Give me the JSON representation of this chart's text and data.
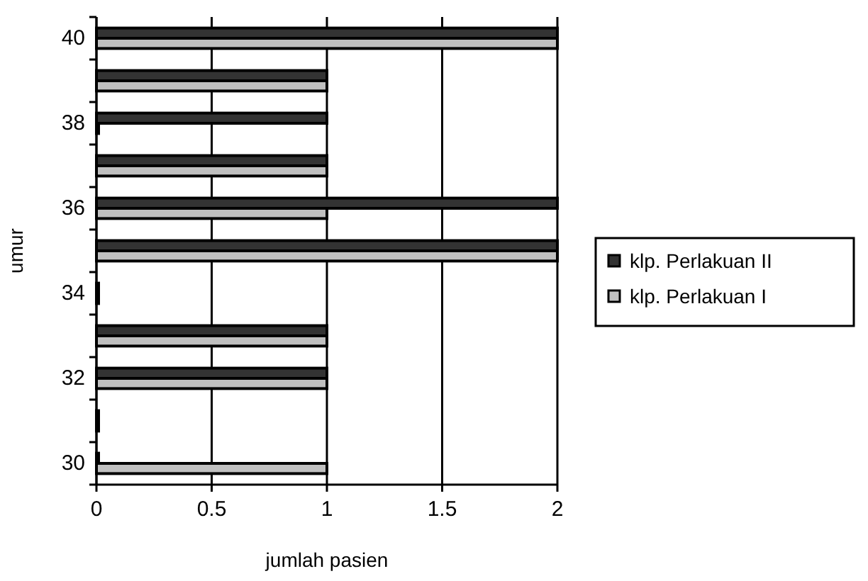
{
  "chart_data": {
    "type": "bar",
    "orientation": "horizontal",
    "xlabel": "jumlah pasien",
    "ylabel": "umur",
    "categories": [
      "40",
      null,
      "38",
      null,
      "36",
      null,
      "34",
      null,
      "32",
      null,
      "30"
    ],
    "series": [
      {
        "name": "klp. Perlakuan II",
        "color": "#333333",
        "values": [
          2,
          1,
          1,
          1,
          2,
          2,
          0,
          1,
          1,
          0,
          0
        ]
      },
      {
        "name": "klp. Perlakuan I",
        "color": "#c0c0c0",
        "values": [
          2,
          1,
          0,
          1,
          1,
          2,
          0,
          1,
          1,
          0,
          1
        ]
      }
    ],
    "xlim": [
      0,
      2
    ],
    "xticks": [
      0,
      0.5,
      1,
      1.5,
      2
    ],
    "grid": "x",
    "legend": "right"
  }
}
